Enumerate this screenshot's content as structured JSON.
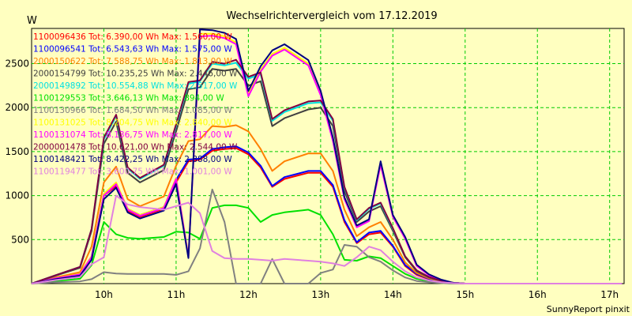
{
  "chart_data": {
    "type": "line",
    "title": "Wechselrichtervergleich vom 17.12.2019",
    "ylabel": "W",
    "xlabel": "",
    "footer": "SunnyReport pinxit",
    "ylim": [
      0,
      2900
    ],
    "xlim": [
      9.0,
      17.2
    ],
    "yticks": [
      500,
      1000,
      1500,
      2000,
      2500
    ],
    "xticks": [
      10,
      11,
      12,
      13,
      14,
      15,
      16,
      17
    ],
    "xtick_labels": [
      "10h",
      "11h",
      "12h",
      "13h",
      "14h",
      "15h",
      "16h",
      "17h"
    ],
    "grid": true,
    "legend_position": "top-left",
    "x": [
      9.0,
      9.33,
      9.67,
      9.83,
      10.0,
      10.17,
      10.33,
      10.5,
      10.83,
      11.0,
      11.17,
      11.33,
      11.5,
      11.67,
      11.83,
      12.0,
      12.17,
      12.33,
      12.5,
      12.83,
      13.0,
      13.17,
      13.33,
      13.5,
      13.67,
      13.83,
      14.0,
      14.17,
      14.33,
      14.5,
      14.67,
      14.83,
      15.0,
      15.17,
      15.33,
      15.5,
      15.67,
      15.83,
      16.0,
      16.17,
      16.33,
      16.5,
      16.67,
      16.83,
      17.0,
      17.17
    ],
    "series": [
      {
        "name": "1100096436",
        "legend": "1100096436 Tot: 6.390,00 Wh Max: 1.560,00 W",
        "color": "#ff0000",
        "values": [
          0,
          60,
          100,
          300,
          1000,
          1110,
          830,
          760,
          850,
          1150,
          1390,
          1410,
          1510,
          1530,
          1540,
          1470,
          1320,
          1100,
          1190,
          1260,
          1260,
          1100,
          700,
          460,
          560,
          580,
          420,
          200,
          100,
          50,
          20,
          10,
          0,
          0,
          0,
          0,
          0,
          0,
          0,
          0,
          0,
          0,
          0,
          0,
          0,
          0
        ]
      },
      {
        "name": "1100096541",
        "legend": "1100096541 Tot: 6.543,63 Wh Max: 1.575,00 W",
        "color": "#0000ff",
        "values": [
          0,
          65,
          110,
          310,
          1020,
          1140,
          850,
          780,
          870,
          1180,
          1410,
          1420,
          1530,
          1550,
          1560,
          1490,
          1340,
          1110,
          1210,
          1280,
          1280,
          1120,
          720,
          470,
          580,
          600,
          430,
          210,
          110,
          55,
          20,
          10,
          0,
          0,
          0,
          0,
          0,
          0,
          0,
          0,
          0,
          0,
          0,
          0,
          0,
          0
        ]
      },
      {
        "name": "2000150622",
        "legend": "2000150622 Tot: 7.588,75 Wh Max: 1.813,00 W",
        "color": "#ff8000",
        "values": [
          0,
          70,
          130,
          420,
          1150,
          1330,
          960,
          880,
          990,
          1340,
          1620,
          1640,
          1790,
          1780,
          1800,
          1730,
          1530,
          1280,
          1390,
          1480,
          1480,
          1280,
          840,
          540,
          640,
          700,
          500,
          240,
          120,
          60,
          25,
          10,
          0,
          0,
          0,
          0,
          0,
          0,
          0,
          0,
          0,
          0,
          0,
          0,
          0,
          0
        ]
      },
      {
        "name": "2000154799",
        "legend": "2000154799 Tot: 10.235,25 Wh Max: 2.446,00 W",
        "color": "#404040",
        "values": [
          0,
          90,
          180,
          600,
          1590,
          1840,
          1260,
          1150,
          1290,
          1730,
          2210,
          2230,
          2440,
          2420,
          2440,
          2250,
          2300,
          1790,
          1880,
          1980,
          2000,
          1790,
          1050,
          700,
          820,
          880,
          600,
          300,
          140,
          70,
          30,
          10,
          0,
          0,
          0,
          0,
          0,
          0,
          0,
          0,
          0,
          0,
          0,
          0,
          0,
          0
        ]
      },
      {
        "name": "2000149892",
        "legend": "2000149892 Tot: 10.554,88 Wh Max: 2.517,00 W",
        "color": "#00e0e0",
        "values": [
          0,
          95,
          190,
          620,
          1640,
          1900,
          1310,
          1190,
          1340,
          1790,
          2270,
          2300,
          2500,
          2480,
          2510,
          2330,
          2380,
          1850,
          1950,
          2050,
          2060,
          1850,
          1090,
          720,
          850,
          910,
          620,
          310,
          150,
          75,
          30,
          10,
          0,
          0,
          0,
          0,
          0,
          0,
          0,
          0,
          0,
          0,
          0,
          0,
          0,
          0
        ]
      },
      {
        "name": "1100129553",
        "legend": "1100129553 Tot: 3.646,13 Wh Max: 894,00 W",
        "color": "#00e000",
        "values": [
          0,
          30,
          55,
          210,
          700,
          560,
          520,
          510,
          530,
          590,
          580,
          510,
          860,
          890,
          890,
          860,
          700,
          780,
          810,
          840,
          780,
          560,
          270,
          260,
          310,
          290,
          200,
          110,
          55,
          25,
          10,
          0,
          0,
          0,
          0,
          0,
          0,
          0,
          0,
          0,
          0,
          0,
          0,
          0,
          0,
          0
        ]
      },
      {
        "name": "1100130966",
        "legend": "1100130966 Tot: 1.684,50 Wh Max: 1.085,00 W",
        "color": "#808080",
        "values": [
          0,
          15,
          25,
          50,
          130,
          115,
          110,
          110,
          110,
          100,
          140,
          400,
          1070,
          700,
          0,
          0,
          0,
          280,
          0,
          0,
          120,
          160,
          440,
          420,
          300,
          250,
          150,
          70,
          30,
          15,
          5,
          0,
          0,
          0,
          0,
          0,
          0,
          0,
          0,
          0,
          0,
          0,
          0,
          0,
          0,
          0
        ]
      },
      {
        "name": "1100131025",
        "legend": "1100131025 Tot: 8.204,75 Wh Max: 2.840,00 W",
        "color": "#ffff00",
        "values": [
          0,
          60,
          110,
          310,
          1020,
          1150,
          850,
          780,
          870,
          1200,
          310,
          2840,
          2840,
          2810,
          2740,
          2150,
          2430,
          2610,
          2680,
          2500,
          2160,
          1640,
          970,
          650,
          720,
          1370,
          770,
          520,
          210,
          100,
          40,
          10,
          0,
          0,
          0,
          0,
          0,
          0,
          0,
          0,
          0,
          0,
          0,
          0,
          0,
          0
        ]
      },
      {
        "name": "1100131074",
        "legend": "1100131074 Tot: 8.136,75 Wh Max: 2.817,00 W",
        "color": "#ff00ff",
        "values": [
          0,
          60,
          105,
          300,
          1000,
          1130,
          840,
          770,
          860,
          1190,
          300,
          2810,
          2817,
          2790,
          2720,
          2130,
          2410,
          2590,
          2660,
          2480,
          2140,
          1620,
          960,
          640,
          710,
          1350,
          760,
          510,
          200,
          95,
          40,
          10,
          0,
          0,
          0,
          0,
          0,
          0,
          0,
          0,
          0,
          0,
          0,
          0,
          0,
          0
        ]
      },
      {
        "name": "2000001478",
        "legend": "2000001478 Tot: 10.621,00 Wh Max: 2.544,00 W",
        "color": "#800040",
        "values": [
          0,
          95,
          190,
          620,
          1660,
          1920,
          1320,
          1200,
          1350,
          1810,
          2290,
          2310,
          2520,
          2500,
          2544,
          2350,
          2400,
          1870,
          1970,
          2070,
          2080,
          1870,
          1100,
          730,
          860,
          920,
          630,
          310,
          150,
          75,
          30,
          10,
          0,
          0,
          0,
          0,
          0,
          0,
          0,
          0,
          0,
          0,
          0,
          0,
          0,
          0
        ]
      },
      {
        "name": "1100148421",
        "legend": "1100148421 Tot: 8.422,25 Wh Max: 2.888,00 W",
        "color": "#000080",
        "values": [
          0,
          50,
          90,
          270,
          960,
          1090,
          810,
          740,
          830,
          1130,
          290,
          2888,
          2880,
          2850,
          2780,
          2190,
          2470,
          2650,
          2720,
          2540,
          2190,
          1660,
          980,
          660,
          730,
          1390,
          780,
          530,
          215,
          105,
          45,
          10,
          0,
          0,
          0,
          0,
          0,
          0,
          0,
          0,
          0,
          0,
          0,
          0,
          0,
          0
        ]
      },
      {
        "name": "1100119477",
        "legend": "1100119477 Tot: 3.600,75 Wh Max: 1.001,00 W",
        "color": "#e080e0",
        "values": [
          0,
          40,
          75,
          220,
          300,
          1001,
          900,
          870,
          840,
          880,
          920,
          800,
          370,
          290,
          280,
          280,
          270,
          260,
          280,
          260,
          250,
          230,
          200,
          300,
          420,
          380,
          250,
          140,
          70,
          35,
          15,
          5,
          0,
          0,
          0,
          0,
          0,
          0,
          0,
          0,
          0,
          0,
          0,
          0,
          0,
          0
        ]
      }
    ]
  }
}
